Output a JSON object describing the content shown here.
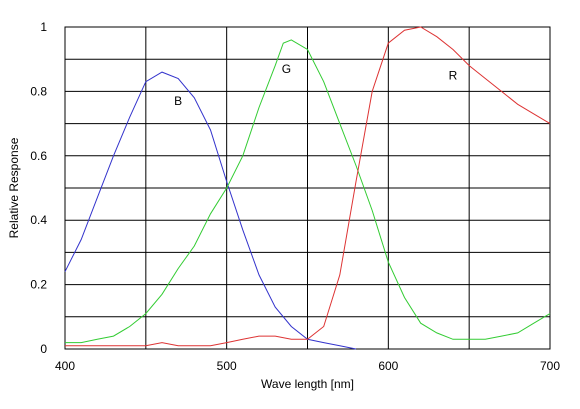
{
  "chart_data": {
    "type": "line",
    "xlabel": "Wave length [nm]",
    "ylabel": "Relative Response",
    "xlim": [
      400,
      700
    ],
    "ylim": [
      0,
      1
    ],
    "x_ticks": [
      400,
      500,
      600,
      700
    ],
    "y_ticks": [
      0,
      0.2,
      0.4,
      0.6,
      0.8,
      1
    ],
    "y_tick_labels": [
      "0",
      "0.2",
      "0.4",
      "0.6",
      "0.8",
      "1"
    ],
    "grid": true,
    "series": [
      {
        "name": "B",
        "color": "#3333cc",
        "x": [
          400,
          410,
          420,
          430,
          440,
          450,
          460,
          470,
          480,
          490,
          500,
          510,
          520,
          530,
          540,
          550,
          560,
          570,
          580
        ],
        "y": [
          0.24,
          0.34,
          0.47,
          0.6,
          0.72,
          0.83,
          0.86,
          0.84,
          0.78,
          0.68,
          0.52,
          0.37,
          0.23,
          0.13,
          0.07,
          0.03,
          0.02,
          0.01,
          0.0
        ],
        "label_at": [
          470,
          0.77
        ]
      },
      {
        "name": "G",
        "color": "#33cc33",
        "x": [
          400,
          410,
          420,
          430,
          440,
          450,
          460,
          470,
          480,
          490,
          500,
          510,
          520,
          530,
          535,
          540,
          550,
          560,
          570,
          580,
          590,
          600,
          610,
          620,
          630,
          640,
          650,
          660,
          670,
          680,
          690,
          700
        ],
        "y": [
          0.02,
          0.02,
          0.03,
          0.04,
          0.07,
          0.11,
          0.17,
          0.25,
          0.32,
          0.42,
          0.5,
          0.6,
          0.75,
          0.88,
          0.95,
          0.96,
          0.93,
          0.83,
          0.7,
          0.57,
          0.43,
          0.27,
          0.16,
          0.08,
          0.05,
          0.03,
          0.03,
          0.03,
          0.04,
          0.05,
          0.08,
          0.11
        ],
        "label_at": [
          537,
          0.87
        ]
      },
      {
        "name": "R",
        "color": "#dd3333",
        "x": [
          400,
          410,
          420,
          430,
          440,
          450,
          460,
          470,
          480,
          490,
          500,
          510,
          520,
          530,
          540,
          550,
          560,
          570,
          580,
          590,
          600,
          610,
          620,
          630,
          640,
          650,
          660,
          670,
          680,
          690,
          700
        ],
        "y": [
          0.01,
          0.01,
          0.01,
          0.01,
          0.01,
          0.01,
          0.02,
          0.01,
          0.01,
          0.01,
          0.02,
          0.03,
          0.04,
          0.04,
          0.03,
          0.03,
          0.07,
          0.23,
          0.52,
          0.8,
          0.95,
          0.99,
          1.0,
          0.97,
          0.93,
          0.88,
          0.84,
          0.8,
          0.76,
          0.73,
          0.7
        ],
        "label_at": [
          640,
          0.85
        ]
      }
    ]
  }
}
